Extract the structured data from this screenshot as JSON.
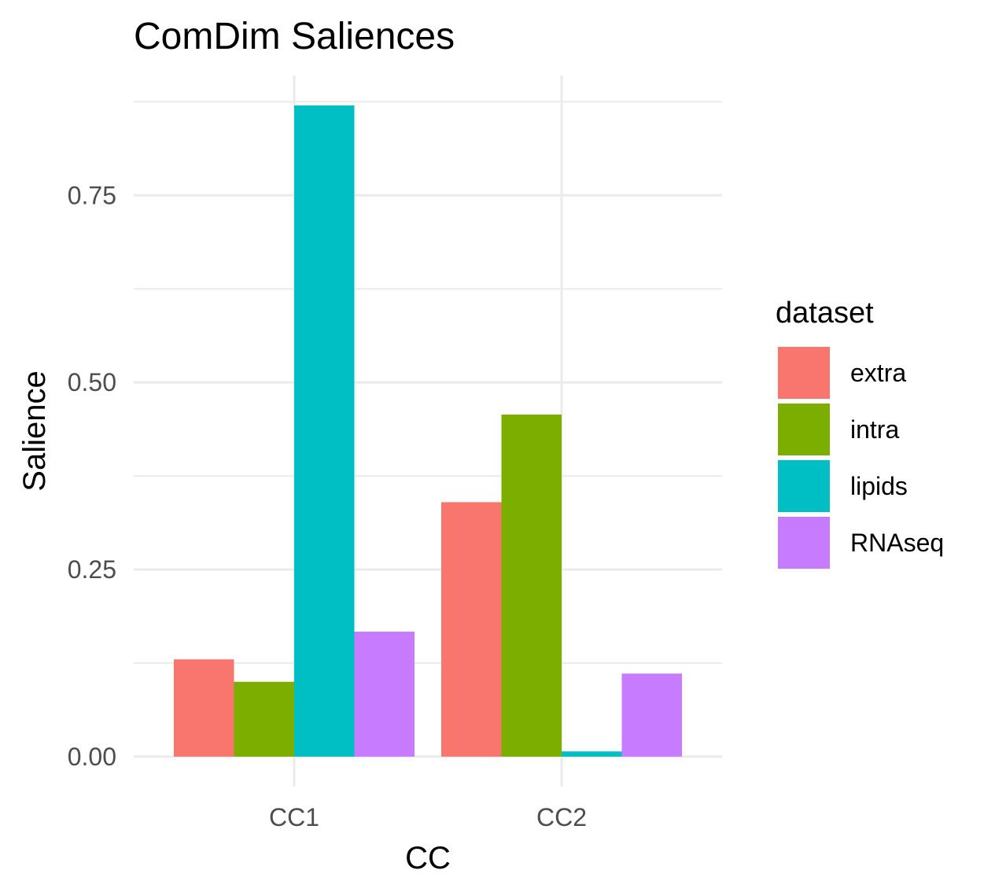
{
  "chart_data": {
    "type": "bar",
    "title": "ComDim Saliences",
    "xlabel": "CC",
    "ylabel": "Salience",
    "categories": [
      "CC1",
      "CC2"
    ],
    "series": [
      {
        "name": "extra",
        "values": [
          0.13,
          0.34
        ],
        "color": "#F8766D"
      },
      {
        "name": "intra",
        "values": [
          0.1,
          0.457
        ],
        "color": "#7CAE00"
      },
      {
        "name": "lipids",
        "values": [
          0.87,
          0.007
        ],
        "color": "#00BFC4"
      },
      {
        "name": "RNAseq",
        "values": [
          0.167,
          0.111
        ],
        "color": "#C77CFF"
      }
    ],
    "yticks": [
      0.0,
      0.25,
      0.5,
      0.75
    ],
    "ytick_labels": [
      "0.00",
      "0.25",
      "0.50",
      "0.75"
    ],
    "ylim": [
      -0.04,
      0.91
    ],
    "grid": true,
    "legend": {
      "title": "dataset",
      "placement": "right"
    }
  }
}
